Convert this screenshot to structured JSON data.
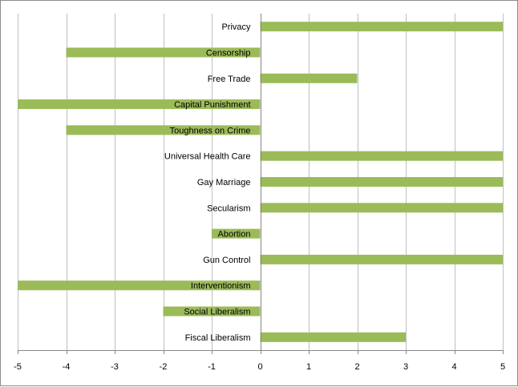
{
  "chart_data": {
    "type": "bar",
    "orientation": "horizontal",
    "categories": [
      "Privacy",
      "Censorship",
      "Free Trade",
      "Capital Punishment",
      "Toughness on Crime",
      "Universal Health Care",
      "Gay Marriage",
      "Secularism",
      "Abortion",
      "Gun Control",
      "Interventionism",
      "Social Liberalism",
      "Fiscal Liberalism"
    ],
    "values": [
      5,
      -4,
      2,
      -5,
      -4,
      5,
      5,
      5,
      -1,
      5,
      -5,
      -2,
      3
    ],
    "xlim": [
      -5,
      5
    ],
    "xticks": [
      "-5",
      "-4",
      "-3",
      "-2",
      "-1",
      "0",
      "1",
      "2",
      "3",
      "4",
      "5"
    ],
    "title": "",
    "xlabel": "",
    "ylabel": "",
    "grid": "vertical",
    "legend": "none",
    "bar_color": "#9bbb59",
    "gridline_color": "#bfbfbf",
    "axis_color": "#868686"
  }
}
